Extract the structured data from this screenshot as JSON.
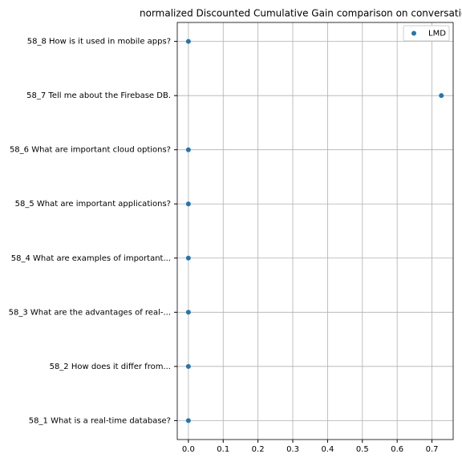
{
  "chart_data": {
    "type": "scatter",
    "title": "normalized Discounted Cumulative Gain comparison on conversatio",
    "categories": [
      "58_1 What is a real-time database?",
      "58_2 How does it differ from...",
      "58_3 What are the advantages of real-...",
      "58_4 What are examples of important...",
      "58_5 What are important applications?",
      "58_6 What are important cloud options?",
      "58_7 Tell me about the Firebase DB.",
      "58_8 How is it used in mobile apps?"
    ],
    "series": [
      {
        "name": "LMD",
        "color": "#1f77b4",
        "values": [
          0,
          0,
          0,
          0,
          0,
          0,
          0.727,
          0
        ]
      }
    ],
    "xlim": [
      -0.032,
      0.761
    ],
    "xticks": [
      {
        "value": 0,
        "label": "0.0"
      },
      0.1,
      0.2,
      0.3,
      0.4,
      0.5,
      0.6,
      0.7
    ],
    "grid": true,
    "legend": "upper right"
  }
}
